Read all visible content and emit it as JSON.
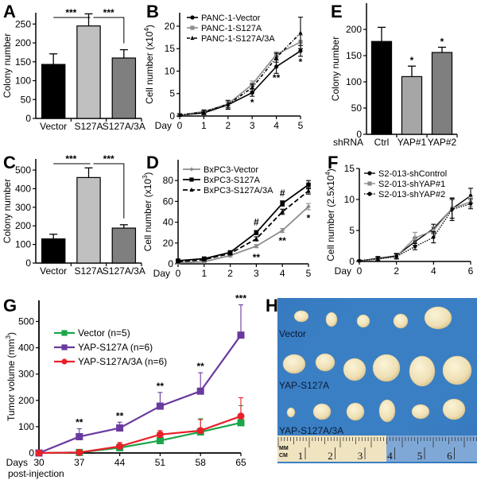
{
  "figure": {
    "panels": [
      "A",
      "B",
      "C",
      "D",
      "E",
      "F",
      "G",
      "H"
    ]
  },
  "chart_data": [
    {
      "panel": "A",
      "type": "bar",
      "title": "",
      "xlabel": "",
      "ylabel": "Colony number",
      "ylim": [
        0,
        280
      ],
      "yticks": [
        0,
        50,
        100,
        150,
        200,
        250
      ],
      "categories": [
        "Vector",
        "S127A",
        "S127A/3A"
      ],
      "values": [
        143,
        245,
        160
      ],
      "errors": [
        28,
        32,
        22
      ],
      "colors": [
        "#000000",
        "#c0c0c0",
        "#7f7f7f"
      ],
      "significance": [
        {
          "from": 0,
          "to": 1,
          "label": "***"
        },
        {
          "from": 1,
          "to": 2,
          "label": "***"
        }
      ]
    },
    {
      "panel": "B",
      "type": "line",
      "xlabel": "Day",
      "ylabel": "Cell number (x10^4)",
      "ylabel_base": "Cell number (x10",
      "ylabel_sup": "4",
      "ylabel_end": ")",
      "ylim": [
        0,
        23
      ],
      "xlim": [
        0,
        5
      ],
      "yticks": [
        0,
        5,
        10,
        15,
        20
      ],
      "x": [
        0,
        1,
        2,
        3,
        4,
        5
      ],
      "series": [
        {
          "name": "PANC-1-Vector",
          "values": [
            0.2,
            0.7,
            2.5,
            5.2,
            11.0,
            14.5
          ],
          "errors": [
            0.3,
            0.4,
            1.0,
            0.8,
            1.5,
            1.2
          ],
          "color": "#000000",
          "dash": "",
          "marker": "circle"
        },
        {
          "name": "PANC-1-S127A",
          "values": [
            0.2,
            1.0,
            2.7,
            7.0,
            13.7,
            16.5
          ],
          "errors": [
            0.3,
            0.4,
            0.8,
            0.8,
            0.6,
            1.5
          ],
          "color": "#8c8c8c",
          "dash": "",
          "marker": "square"
        },
        {
          "name": "PANC-1-S127A/3A",
          "values": [
            0.2,
            0.9,
            2.6,
            6.3,
            13.0,
            18.5
          ],
          "errors": [
            0.3,
            0.4,
            0.8,
            0.8,
            1.0,
            3.5
          ],
          "color": "#000000",
          "dash": "4,2,1,2",
          "marker": "triangle"
        }
      ],
      "annotations": [
        {
          "x": 3,
          "y": 3.0,
          "label": "*"
        },
        {
          "x": 4,
          "y": 8.5,
          "label": "**"
        },
        {
          "x": 5,
          "y": 12.0,
          "label": "*"
        }
      ]
    },
    {
      "panel": "C",
      "type": "bar",
      "xlabel": "",
      "ylabel": "Colony number",
      "ylim": [
        0,
        560
      ],
      "yticks": [
        0,
        100,
        200,
        300,
        400,
        500
      ],
      "categories": [
        "Vector",
        "S127A",
        "S127A/3A"
      ],
      "values": [
        130,
        460,
        188
      ],
      "errors": [
        25,
        52,
        18
      ],
      "colors": [
        "#000000",
        "#c0c0c0",
        "#7f7f7f"
      ],
      "significance": [
        {
          "from": 0,
          "to": 1,
          "label": "***"
        },
        {
          "from": 1,
          "to": 2,
          "label": "***"
        }
      ]
    },
    {
      "panel": "D",
      "type": "line",
      "xlabel": "Day",
      "ylabel": "Cell number (x10^3)",
      "ylabel_base": "Cell number (x10",
      "ylabel_sup": "3",
      "ylabel_end": ")",
      "ylim": [
        0,
        100
      ],
      "xlim": [
        0,
        5
      ],
      "yticks": [
        0,
        20,
        40,
        60,
        80
      ],
      "x": [
        0,
        1,
        2,
        3,
        4,
        5
      ],
      "series": [
        {
          "name": "BxPC3-Vector",
          "values": [
            1,
            2,
            8,
            17,
            32,
            55
          ],
          "errors": [
            1,
            1,
            1.5,
            1.5,
            2,
            3
          ],
          "color": "#8c8c8c",
          "dash": "",
          "marker": "diamond"
        },
        {
          "name": "BxPC3-S127A",
          "values": [
            3,
            5,
            11,
            30,
            58,
            76
          ],
          "errors": [
            1,
            1,
            1.5,
            2,
            2.5,
            4
          ],
          "color": "#000000",
          "dash": "",
          "marker": "square"
        },
        {
          "name": "BxPC3-S127A/3A",
          "values": [
            2,
            4,
            10,
            24,
            50,
            70
          ],
          "errors": [
            1,
            1,
            1.5,
            2,
            2.5,
            3
          ],
          "color": "#000000",
          "dash": "6,3",
          "marker": "triangle"
        }
      ],
      "annotations": [
        {
          "x": 3,
          "y": 40,
          "label": "#"
        },
        {
          "x": 3,
          "y": 6,
          "label": "**"
        },
        {
          "x": 4,
          "y": 68,
          "label": "#"
        },
        {
          "x": 4,
          "y": 22,
          "label": "**"
        },
        {
          "x": 5,
          "y": 44,
          "label": "*"
        }
      ]
    },
    {
      "panel": "E",
      "type": "bar",
      "xlabel": "shRNA",
      "ylabel": "Colony number",
      "ylim": [
        0,
        250
      ],
      "yticks": [
        0,
        50,
        100,
        150,
        200
      ],
      "categories": [
        "Ctrl",
        "YAP#1",
        "YAP#2"
      ],
      "values": [
        177,
        110,
        156
      ],
      "errors": [
        27,
        20,
        10
      ],
      "colors": [
        "#000000",
        "#a6a6a6",
        "#7f7f7f"
      ],
      "annotations": [
        {
          "index": 1,
          "label": "*"
        },
        {
          "index": 2,
          "label": "*"
        }
      ]
    },
    {
      "panel": "F",
      "type": "line",
      "xlabel": "Day",
      "ylabel": "Cell number (2.5x10^4)",
      "ylabel_base": "Cell number (2.5x10",
      "ylabel_sup": "4",
      "ylabel_end": ")",
      "ylim": [
        0,
        15
      ],
      "xlim": [
        0,
        6
      ],
      "yticks": [
        0,
        5,
        10,
        15
      ],
      "xticks": [
        0,
        2,
        4,
        6
      ],
      "x": [
        0,
        1,
        2,
        3,
        4,
        5,
        6
      ],
      "series": [
        {
          "name": "S2-013-shControl",
          "values": [
            0.1,
            0.5,
            0.9,
            3.2,
            5.3,
            8.5,
            10.6
          ],
          "errors": [
            0.1,
            0.3,
            0.4,
            0.6,
            0.7,
            1.5,
            1.2
          ],
          "color": "#000000",
          "dash": "",
          "marker": "circle"
        },
        {
          "name": "S2-013-shYAP#1",
          "values": [
            0.1,
            0.4,
            0.8,
            3.8,
            5.0,
            8.6,
            9.6
          ],
          "errors": [
            0.1,
            0.3,
            0.4,
            0.9,
            0.6,
            1.7,
            0.8
          ],
          "color": "#8c8c8c",
          "dash": "",
          "marker": "square"
        },
        {
          "name": "S2-013-shYAP#2",
          "values": [
            0.1,
            0.4,
            0.8,
            2.4,
            3.9,
            8.4,
            9.3
          ],
          "errors": [
            0.1,
            0.3,
            0.4,
            0.5,
            0.9,
            1.8,
            0.8
          ],
          "color": "#000000",
          "dash": "1.5,1.5",
          "marker": "circle"
        }
      ]
    },
    {
      "panel": "G",
      "type": "line",
      "xlabel": "Days post-injection",
      "xlabel_line1": "Days",
      "xlabel_line2": "post-injection",
      "ylabel": "Tumor volume (mm^3)",
      "ylabel_base": "Tumor volume (mm",
      "ylabel_sup": "3",
      "ylabel_end": ")",
      "ylim": [
        0,
        580
      ],
      "xlim": [
        30,
        65
      ],
      "yticks": [
        0,
        100,
        200,
        300,
        400,
        500
      ],
      "x": [
        30,
        37,
        44,
        51,
        58,
        65
      ],
      "series": [
        {
          "name": "Vector (n=5)",
          "values": [
            0,
            2,
            20,
            47,
            80,
            115
          ],
          "errors": [
            0,
            3,
            15,
            15,
            50,
            65
          ],
          "color": "#1aa64a",
          "marker": "square"
        },
        {
          "name": "YAP-S127A (n=6)",
          "values": [
            0,
            62,
            95,
            178,
            235,
            448
          ],
          "errors": [
            0,
            30,
            22,
            52,
            70,
            115
          ],
          "color": "#6a3a9e",
          "marker": "square"
        },
        {
          "name": "YAP-S127A/3A (n=6)",
          "values": [
            0,
            2,
            25,
            70,
            85,
            140
          ],
          "errors": [
            0,
            3,
            15,
            15,
            42,
            70
          ],
          "color": "#e8202a",
          "marker": "circle"
        }
      ],
      "annotations": [
        {
          "x": 37,
          "label": "**"
        },
        {
          "x": 44,
          "label": "**"
        },
        {
          "x": 51,
          "label": "**"
        },
        {
          "x": 58,
          "label": "**"
        },
        {
          "x": 65,
          "label": "***"
        }
      ]
    }
  ],
  "photo": {
    "panel": "H",
    "description": "Photograph of excised tumors on blue background with ruler",
    "row_labels": [
      "Vector",
      "YAP-S127A",
      "YAP-S127A/3A"
    ],
    "ruler_units": [
      "MM",
      "CM"
    ],
    "ruler_numbers": [
      "1",
      "2",
      "3",
      "4",
      "5",
      "6"
    ],
    "background_color": "#3a7fc4"
  }
}
